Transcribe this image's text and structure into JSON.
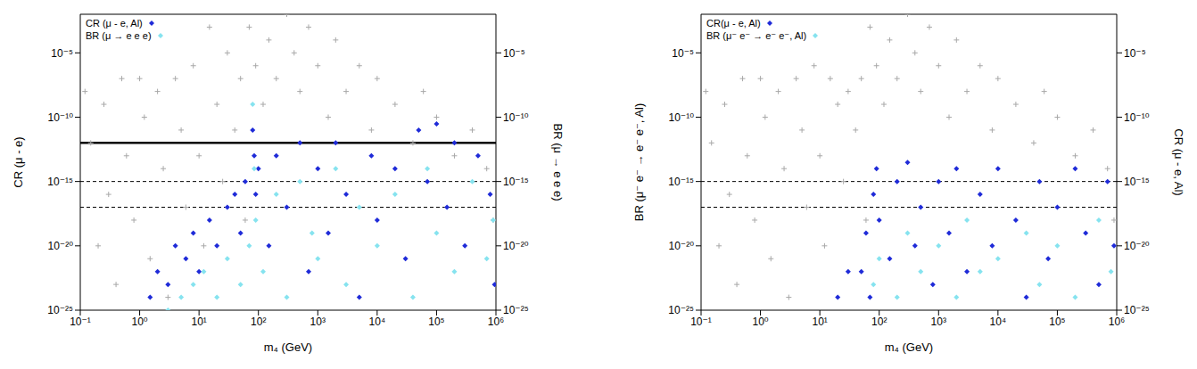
{
  "chart_data": [
    {
      "type": "scatter",
      "log": true,
      "grid": false,
      "legend": "upper left",
      "xlabel": "m₄ (GeV)",
      "ylabel": "CR (μ - e)",
      "y2label": "BR (μ → e e e)",
      "xlim": [
        0.1,
        1000000
      ],
      "xticks": [
        {
          "value": 0.1,
          "label": "10⁻¹"
        },
        {
          "value": 1,
          "label": "10⁰"
        },
        {
          "value": 10,
          "label": "10¹"
        },
        {
          "value": 100,
          "label": "10²"
        },
        {
          "value": 1000,
          "label": "10³"
        },
        {
          "value": 10000,
          "label": "10⁴"
        },
        {
          "value": 100000,
          "label": "10⁵"
        },
        {
          "value": 1000000,
          "label": "10⁶"
        }
      ],
      "ylim": [
        1e-25,
        0.01
      ],
      "yticks": [
        {
          "value": 1e-25,
          "label": "10⁻²⁵"
        },
        {
          "value": 1e-20,
          "label": "10⁻²⁰"
        },
        {
          "value": 1e-15,
          "label": "10⁻¹⁵"
        },
        {
          "value": 1e-10,
          "label": "10⁻¹⁰"
        },
        {
          "value": 1e-05,
          "label": "10⁻⁵"
        }
      ],
      "y2lim": [
        1e-25,
        0.01
      ],
      "y2ticks": [
        {
          "value": 1e-25,
          "label": "10⁻²⁵"
        },
        {
          "value": 1e-20,
          "label": "10⁻²⁰"
        },
        {
          "value": 1e-15,
          "label": "10⁻¹⁵"
        },
        {
          "value": 1e-10,
          "label": "10⁻¹⁰"
        },
        {
          "value": 1e-05,
          "label": "10⁻⁵"
        }
      ],
      "reference_lines": [
        {
          "value": 1e-12,
          "line_style": "solid"
        },
        {
          "value": 1e-15,
          "line_style": "dashed"
        },
        {
          "value": 1e-17,
          "line_style": "dashed"
        }
      ],
      "series": [
        {
          "color": "#a8a8a8",
          "marker": "plus",
          "x": [
            0.12,
            0.15,
            0.2,
            0.25,
            0.3,
            0.4,
            0.5,
            0.6,
            0.8,
            1,
            1.2,
            1.5,
            2,
            2.5,
            3,
            4,
            5,
            6,
            8,
            10,
            12,
            15,
            20,
            25,
            30,
            40,
            50,
            60,
            70,
            90,
            120,
            150,
            200,
            300,
            400,
            500,
            700,
            1000,
            1500,
            2000,
            3000,
            5000,
            8000,
            10000,
            20000,
            40000,
            60000,
            100000,
            200000,
            400000,
            700000,
            900000
          ],
          "values": [
            1e-08,
            1e-12,
            1e-20,
            1e-09,
            1e-16,
            1e-23,
            1e-07,
            1e-13,
            1e-18,
            1e-07,
            1e-10,
            1e-21,
            1e-08,
            1e-14,
            1e-24,
            1e-07,
            1e-11,
            1e-17,
            1e-06,
            1e-13,
            1e-20,
            0.001,
            1e-09,
            1e-15,
            1e-05,
            1e-11,
            1e-07,
            1e-18,
            0.001,
            1e-06,
            1e-09,
            0.0001,
            1e-07,
            0.01,
            1e-05,
            1e-08,
            0.001,
            1e-06,
            1e-10,
            0.0001,
            1e-08,
            1e-06,
            1e-11,
            1e-07,
            1e-09,
            1e-12,
            1e-08,
            1e-10,
            1e-13,
            1e-11,
            1e-14,
            1e-18
          ]
        },
        {
          "name": "CR (μ - e, Al)",
          "color": "#1f2bd8",
          "marker": "diamond",
          "x": [
            1.5,
            2,
            3,
            4,
            6,
            8,
            10,
            15,
            20,
            30,
            40,
            50,
            60,
            80,
            85,
            90,
            100,
            150,
            200,
            300,
            500,
            700,
            1000,
            1500,
            2000,
            3000,
            5000,
            8000,
            10000,
            20000,
            30000,
            50000,
            70000,
            100000,
            150000,
            200000,
            300000,
            500000,
            800000,
            950000
          ],
          "values": [
            1e-24,
            1e-22,
            1e-23,
            1e-20,
            1e-21,
            1e-19,
            1e-22,
            1e-18,
            1e-20,
            1e-17,
            1e-16,
            1e-19,
            1e-15,
            1e-11,
            1e-13,
            1e-16,
            1e-14,
            1e-20,
            1e-13,
            1e-17,
            1e-12,
            1e-22,
            1e-14,
            1e-19,
            1e-12,
            1e-16,
            1e-24,
            1e-13,
            1e-18,
            1e-14,
            1e-21,
            1e-11,
            1e-15,
            3e-11,
            1e-17,
            1e-12,
            1e-20,
            1e-13,
            1e-16,
            1e-23
          ]
        },
        {
          "name": "BR (μ → e e e)",
          "color": "#86e3ef",
          "marker": "diamond",
          "axis": "y2",
          "x": [
            3,
            5,
            8,
            12,
            20,
            30,
            50,
            70,
            80,
            85,
            90,
            120,
            200,
            300,
            500,
            800,
            1000,
            2000,
            3000,
            5000,
            10000,
            20000,
            40000,
            70000,
            100000,
            200000,
            400000,
            700000,
            900000
          ],
          "values": [
            1e-25,
            1e-24,
            1e-23,
            1e-22,
            1e-24,
            1e-21,
            1e-23,
            1e-20,
            1e-09,
            1e-14,
            1e-18,
            1e-22,
            1e-16,
            1e-24,
            1e-15,
            1e-19,
            1e-21,
            1e-14,
            1e-23,
            1e-17,
            1e-20,
            1e-16,
            1e-24,
            1e-14,
            1e-19,
            1e-22,
            1e-15,
            1e-21,
            1e-18
          ]
        }
      ]
    },
    {
      "type": "scatter",
      "log": true,
      "grid": false,
      "legend": "upper left",
      "xlabel": "m₄ (GeV)",
      "ylabel": "BR (μ⁻ e⁻ → e⁻ e⁻, Al)",
      "y2label": "CR (μ - e, Al)",
      "xlim": [
        0.1,
        1000000
      ],
      "xticks": [
        {
          "value": 0.1,
          "label": "10⁻¹"
        },
        {
          "value": 1,
          "label": "10⁰"
        },
        {
          "value": 10,
          "label": "10¹"
        },
        {
          "value": 100,
          "label": "10²"
        },
        {
          "value": 1000,
          "label": "10³"
        },
        {
          "value": 10000,
          "label": "10⁴"
        },
        {
          "value": 100000,
          "label": "10⁵"
        },
        {
          "value": 1000000,
          "label": "10⁶"
        }
      ],
      "ylim": [
        1e-25,
        0.01
      ],
      "yticks": [
        {
          "value": 1e-25,
          "label": "10⁻²⁵"
        },
        {
          "value": 1e-20,
          "label": "10⁻²⁰"
        },
        {
          "value": 1e-15,
          "label": "10⁻¹⁵"
        },
        {
          "value": 1e-10,
          "label": "10⁻¹⁰"
        },
        {
          "value": 1e-05,
          "label": "10⁻⁵"
        }
      ],
      "y2lim": [
        1e-25,
        0.01
      ],
      "y2ticks": [
        {
          "value": 1e-25,
          "label": "10⁻²⁵"
        },
        {
          "value": 1e-20,
          "label": "10⁻²⁰"
        },
        {
          "value": 1e-15,
          "label": "10⁻¹⁵"
        },
        {
          "value": 1e-10,
          "label": "10⁻¹⁰"
        },
        {
          "value": 1e-05,
          "label": "10⁻⁵"
        }
      ],
      "reference_lines": [
        {
          "value": 1e-15,
          "line_style": "dashed"
        },
        {
          "value": 1e-17,
          "line_style": "dashed"
        }
      ],
      "series": [
        {
          "color": "#a8a8a8",
          "marker": "plus",
          "x": [
            0.12,
            0.15,
            0.2,
            0.25,
            0.3,
            0.4,
            0.5,
            0.6,
            0.8,
            1,
            1.2,
            1.5,
            2,
            2.5,
            3,
            4,
            5,
            6,
            8,
            10,
            12,
            15,
            20,
            25,
            30,
            40,
            50,
            60,
            70,
            90,
            120,
            150,
            200,
            300,
            400,
            500,
            700,
            1000,
            1500,
            2000,
            3000,
            5000,
            8000,
            10000,
            20000,
            40000,
            60000,
            100000,
            200000,
            400000,
            700000,
            900000
          ],
          "values": [
            1e-08,
            1e-12,
            1e-20,
            1e-09,
            1e-16,
            1e-23,
            1e-07,
            1e-13,
            1e-18,
            1e-07,
            1e-10,
            1e-21,
            1e-08,
            1e-14,
            1e-24,
            1e-07,
            1e-11,
            1e-17,
            1e-06,
            1e-13,
            1e-20,
            1e-07,
            1e-09,
            1e-15,
            1e-08,
            1e-11,
            1e-07,
            1e-18,
            0.001,
            1e-06,
            1e-09,
            0.0001,
            1e-07,
            0.01,
            1e-05,
            1e-08,
            0.001,
            1e-06,
            1e-10,
            0.0001,
            1e-08,
            1e-06,
            1e-11,
            1e-07,
            1e-09,
            1e-12,
            1e-08,
            1e-10,
            1e-13,
            1e-11,
            1e-14,
            1e-18
          ]
        },
        {
          "name": "CR(μ - e, Al)",
          "color": "#1f2bd8",
          "marker": "diamond",
          "axis": "y2",
          "x": [
            20,
            30,
            50,
            60,
            70,
            80,
            90,
            100,
            150,
            200,
            300,
            400,
            500,
            800,
            1000,
            1500,
            2000,
            3000,
            5000,
            8000,
            10000,
            20000,
            30000,
            50000,
            70000,
            100000,
            200000,
            300000,
            500000,
            700000,
            900000
          ],
          "values": [
            1e-24,
            1e-22,
            1e-22,
            1e-19,
            1e-24,
            1e-16,
            1e-14,
            1e-18,
            1e-21,
            1e-15,
            3e-14,
            1e-20,
            1e-17,
            1e-23,
            1e-15,
            1e-19,
            1e-14,
            1e-22,
            1e-16,
            1e-20,
            1e-14,
            1e-18,
            1e-24,
            1e-15,
            1e-21,
            1e-17,
            1e-14,
            1e-19,
            1e-23,
            1e-15,
            1e-20
          ]
        },
        {
          "name": "BR (μ⁻ e⁻ → e⁻ e⁻, Al)",
          "color": "#86e3ef",
          "marker": "diamond",
          "x": [
            80,
            100,
            200,
            300,
            500,
            1000,
            2000,
            3000,
            5000,
            10000,
            30000,
            50000,
            100000,
            200000,
            500000,
            800000
          ],
          "values": [
            1e-23,
            1e-21,
            1e-24,
            1e-19,
            1e-22,
            1e-20,
            1e-24,
            1e-18,
            1e-22,
            1e-21,
            1e-19,
            1e-23,
            1e-20,
            1e-24,
            1e-18,
            1e-22
          ]
        }
      ]
    }
  ]
}
